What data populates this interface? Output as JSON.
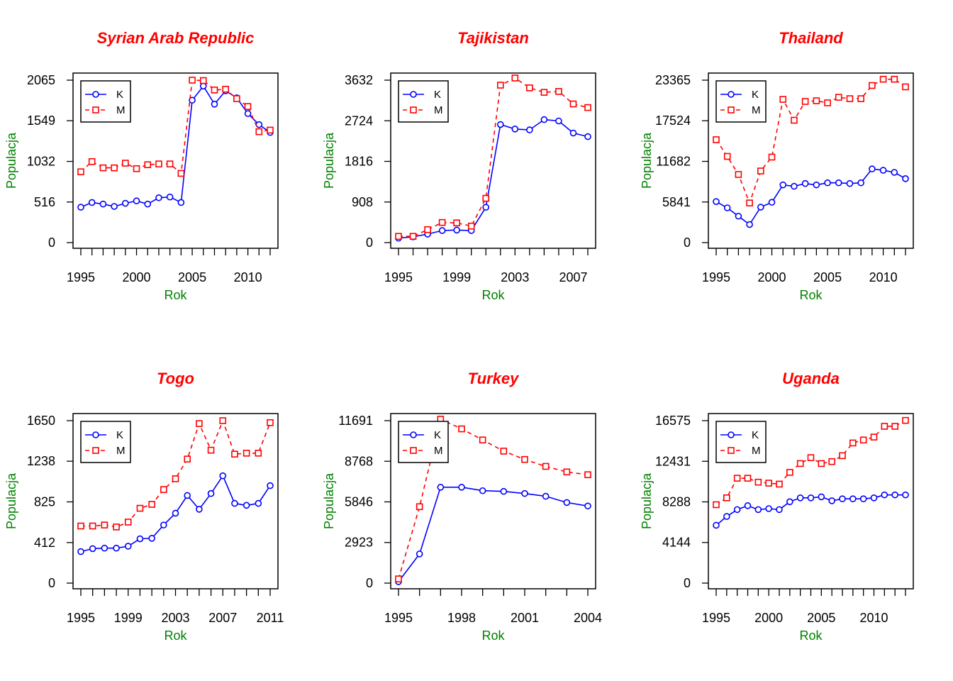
{
  "colors": {
    "title": "#ff0000",
    "axis_label": "#008000",
    "series_K": "#0000ff",
    "series_M": "#ff0000",
    "axes": "#000000"
  },
  "legend_labels": [
    "K",
    "M"
  ],
  "chart_data": [
    {
      "type": "line",
      "title": "Syrian Arab Republic",
      "xlabel": "Rok",
      "ylabel": "Populacja",
      "x": [
        1995,
        1996,
        1997,
        1998,
        1999,
        2000,
        2001,
        2002,
        2003,
        2004,
        2005,
        2006,
        2007,
        2008,
        2009,
        2010,
        2011,
        2012
      ],
      "xlim": [
        1995,
        2012
      ],
      "xticks": [
        1995,
        2000,
        2005,
        2010
      ],
      "ylim": [
        0,
        2065
      ],
      "yticks": [
        0,
        516,
        1032,
        1549,
        2065
      ],
      "series": [
        {
          "name": "K",
          "values": [
            450,
            510,
            490,
            460,
            500,
            530,
            490,
            570,
            580,
            510,
            1810,
            1990,
            1760,
            1930,
            1840,
            1640,
            1500,
            1400
          ]
        },
        {
          "name": "M",
          "values": [
            900,
            1030,
            950,
            950,
            1010,
            940,
            990,
            1000,
            1000,
            880,
            2065,
            2060,
            1940,
            1950,
            1830,
            1730,
            1410,
            1430
          ]
        }
      ],
      "legend": "top-left"
    },
    {
      "type": "line",
      "title": "Tajikistan",
      "xlabel": "Rok",
      "ylabel": "Populacja",
      "x": [
        1995,
        1996,
        1997,
        1998,
        1999,
        2000,
        2001,
        2002,
        2003,
        2004,
        2005,
        2006,
        2007,
        2008
      ],
      "xlim": [
        1995,
        2008
      ],
      "xticks": [
        1995,
        1999,
        2003,
        2007
      ],
      "ylim": [
        0,
        3632
      ],
      "yticks": [
        0,
        908,
        1816,
        2724,
        3632
      ],
      "series": [
        {
          "name": "K",
          "values": [
            100,
            130,
            190,
            270,
            280,
            270,
            790,
            2640,
            2540,
            2520,
            2750,
            2720,
            2450,
            2370
          ]
        },
        {
          "name": "M",
          "values": [
            140,
            140,
            290,
            450,
            440,
            370,
            990,
            3520,
            3680,
            3460,
            3360,
            3380,
            3100,
            3020
          ]
        }
      ],
      "legend": "top-left"
    },
    {
      "type": "line",
      "title": "Thailand",
      "xlabel": "Rok",
      "ylabel": "Populacja",
      "x": [
        1995,
        1996,
        1997,
        1998,
        1999,
        2000,
        2001,
        2002,
        2003,
        2004,
        2005,
        2006,
        2007,
        2008,
        2009,
        2010,
        2011,
        2012
      ],
      "xlim": [
        1995,
        2012
      ],
      "xticks": [
        1995,
        2000,
        2005,
        2010
      ],
      "ylim": [
        0,
        23365
      ],
      "yticks": [
        0,
        5841,
        11682,
        17524,
        23365
      ],
      "series": [
        {
          "name": "K",
          "values": [
            5900,
            5000,
            3800,
            2600,
            5100,
            5800,
            8300,
            8100,
            8500,
            8300,
            8600,
            8600,
            8500,
            8600,
            10600,
            10400,
            10100,
            9200
          ]
        },
        {
          "name": "M",
          "values": [
            14800,
            12400,
            9800,
            5700,
            10300,
            12300,
            20600,
            17600,
            20300,
            20400,
            20100,
            20900,
            20700,
            20700,
            22600,
            23500,
            23500,
            22400
          ]
        }
      ],
      "legend": "top-left"
    },
    {
      "type": "line",
      "title": "Togo",
      "xlabel": "Rok",
      "ylabel": "Populacja",
      "x": [
        1995,
        1996,
        1997,
        1998,
        1999,
        2000,
        2001,
        2002,
        2003,
        2004,
        2005,
        2006,
        2007,
        2008,
        2009,
        2010,
        2011
      ],
      "xlim": [
        1995,
        2011
      ],
      "xticks": [
        1995,
        1999,
        2003,
        2007,
        2011
      ],
      "ylim": [
        0,
        1650
      ],
      "yticks": [
        0,
        412,
        825,
        1238,
        1650
      ],
      "series": [
        {
          "name": "K",
          "values": [
            320,
            350,
            355,
            355,
            375,
            450,
            455,
            590,
            710,
            890,
            750,
            910,
            1090,
            810,
            790,
            810,
            990
          ]
        },
        {
          "name": "M",
          "values": [
            580,
            580,
            590,
            570,
            620,
            760,
            800,
            950,
            1060,
            1260,
            1620,
            1350,
            1650,
            1310,
            1320,
            1320,
            1630
          ]
        }
      ],
      "legend": "top-left"
    },
    {
      "type": "line",
      "title": "Turkey",
      "xlabel": "Rok",
      "ylabel": "Populacja",
      "x": [
        1995,
        1996,
        1997,
        1998,
        1999,
        2000,
        2001,
        2002,
        2003,
        2004
      ],
      "xlim": [
        1995,
        2004
      ],
      "xticks": [
        1995,
        1998,
        2001,
        2004
      ],
      "ylim": [
        0,
        11691
      ],
      "yticks": [
        0,
        2923,
        5846,
        8768,
        11691
      ],
      "series": [
        {
          "name": "K",
          "values": [
            100,
            2100,
            6900,
            6900,
            6650,
            6600,
            6450,
            6250,
            5800,
            5550
          ]
        },
        {
          "name": "M",
          "values": [
            300,
            5500,
            11800,
            11100,
            10300,
            9500,
            8900,
            8400,
            8000,
            7800
          ]
        }
      ],
      "legend": "top-left"
    },
    {
      "type": "line",
      "title": "Uganda",
      "xlabel": "Rok",
      "ylabel": "Populacja",
      "x": [
        1995,
        1996,
        1997,
        1998,
        1999,
        2000,
        2001,
        2002,
        2003,
        2004,
        2005,
        2006,
        2007,
        2008,
        2009,
        2010,
        2011,
        2012,
        2013
      ],
      "xlim": [
        1995,
        2013
      ],
      "xticks": [
        1995,
        2000,
        2005,
        2010
      ],
      "ylim": [
        0,
        16575
      ],
      "yticks": [
        0,
        4144,
        8288,
        12431,
        16575
      ],
      "series": [
        {
          "name": "K",
          "values": [
            5900,
            6800,
            7500,
            7900,
            7500,
            7600,
            7500,
            8300,
            8700,
            8700,
            8800,
            8400,
            8600,
            8600,
            8600,
            8700,
            9000,
            9000,
            9000
          ]
        },
        {
          "name": "M",
          "values": [
            8000,
            8700,
            10700,
            10700,
            10300,
            10200,
            10100,
            11300,
            12200,
            12800,
            12200,
            12400,
            13000,
            14300,
            14600,
            14900,
            16000,
            16000,
            16600
          ]
        }
      ],
      "legend": "top-left"
    }
  ]
}
